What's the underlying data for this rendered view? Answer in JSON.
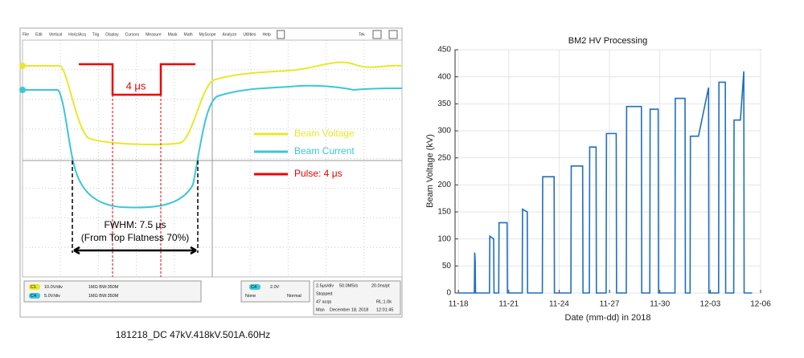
{
  "scope": {
    "menu": [
      "File",
      "Edit",
      "Vertical",
      "Horiz/Acq",
      "Trig",
      "Display",
      "Cursors",
      "Measure",
      "Mask",
      "Math",
      "MyScope",
      "Analyze",
      "Utilities",
      "Help"
    ],
    "brand": "Tek",
    "annotations": {
      "pulse_width": "4 μs",
      "fwhm": "FWHM: 7.5 μs",
      "fwhm_note": "(From Top Flatness 70%)"
    },
    "legend": [
      "Beam Voltage",
      "Beam Current",
      "Pulse: 4 μs"
    ],
    "status": {
      "ch1": {
        "label": "C1",
        "scale": "10.0V/div",
        "coupling": "1MΩ BW:350M"
      },
      "ch4": {
        "label": "C4",
        "scale": "5.0V/div",
        "coupling": "1MΩ BW:350M"
      },
      "trigger": {
        "label": "C4",
        "level": "2.0V",
        "source": "None",
        "mode": "Normal"
      },
      "timebase": {
        "scale": "2.5μs/div",
        "rate": "50.0MS/s",
        "resolution": "20.0ns/pt"
      },
      "state": "Stopped",
      "acqs": "47 acqs",
      "record": "RL:1.0k",
      "mode": "Man",
      "date": "December 18, 2018",
      "time": "12:01:45"
    },
    "caption": "181218_DC 47kV.418kV.501A.60Hz"
  },
  "chart_data": {
    "type": "line",
    "title": "BM2 HV Processing",
    "xlabel": "Date (mm-dd) in 2018",
    "ylabel": "Beam Voltage (kV)",
    "color": "#1f6fc0",
    "x": [
      0,
      0.95,
      0.97,
      1.0,
      1.02,
      1.85,
      1.87,
      2.1,
      2.12,
      2.4,
      2.42,
      2.9,
      2.92,
      3.8,
      3.82,
      4.1,
      4.12,
      5.0,
      5.02,
      5.7,
      5.72,
      6.7,
      6.72,
      7.0,
      7.4,
      7.42,
      7.8,
      7.82,
      8.2,
      8.22,
      8.8,
      8.82,
      9.4,
      9.42,
      10.0,
      10.02,
      10.9,
      10.92,
      11.4,
      11.42,
      11.9,
      11.92,
      12.9,
      12.92,
      13.5,
      13.52,
      13.8,
      13.82,
      14.3,
      14.9,
      14.92,
      15.5,
      15.52,
      15.9,
      15.92,
      16.4,
      16.42,
      16.8,
      17.0,
      17.02,
      17.5
    ],
    "values": [
      0,
      0,
      75,
      60,
      0,
      0,
      105,
      100,
      0,
      0,
      130,
      130,
      0,
      0,
      155,
      150,
      0,
      0,
      215,
      215,
      0,
      0,
      235,
      235,
      235,
      0,
      0,
      270,
      270,
      0,
      0,
      295,
      295,
      0,
      0,
      345,
      345,
      0,
      0,
      340,
      340,
      0,
      0,
      360,
      360,
      0,
      0,
      290,
      290,
      380,
      0,
      0,
      390,
      390,
      0,
      0,
      320,
      320,
      410,
      0,
      0
    ],
    "xlim": [
      -0.2,
      18
    ],
    "xticks": [
      {
        "value": 0,
        "label": "11-18"
      },
      {
        "value": 3,
        "label": "11-21"
      },
      {
        "value": 6,
        "label": "11-24"
      },
      {
        "value": 9,
        "label": "11-27"
      },
      {
        "value": 12,
        "label": "11-30"
      },
      {
        "value": 15,
        "label": "12-03"
      },
      {
        "value": 18,
        "label": "12-06"
      }
    ],
    "ylim": [
      0,
      450
    ],
    "yticks": [
      0,
      50,
      100,
      150,
      200,
      250,
      300,
      350,
      400,
      450
    ]
  }
}
